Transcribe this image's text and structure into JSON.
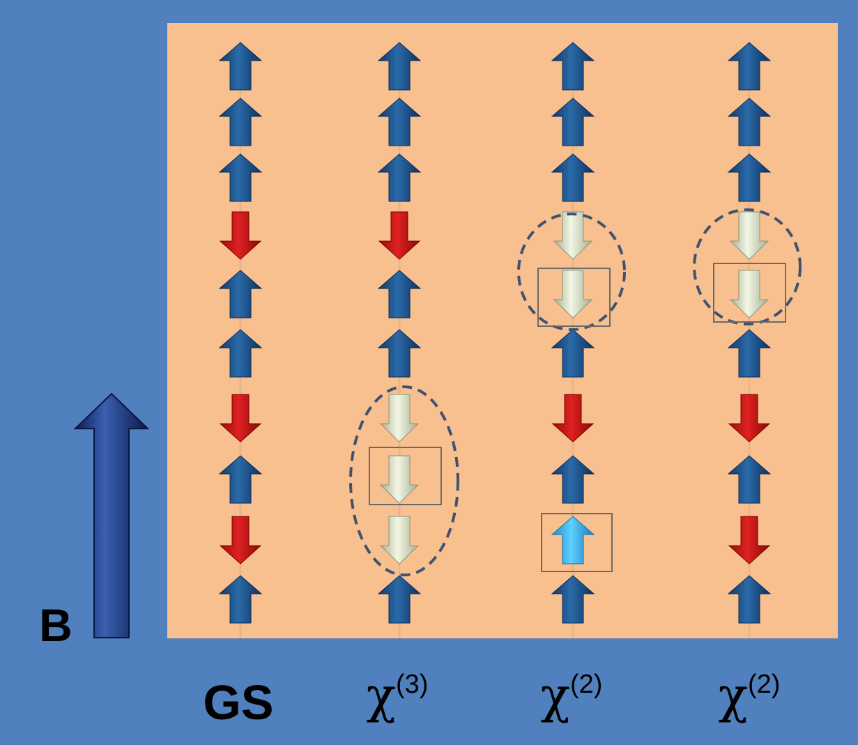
{
  "field_label": "B",
  "columns": [
    {
      "base": "GS"
    },
    {
      "base": "χ",
      "sup": "(3)"
    },
    {
      "base": "χ",
      "sup": "(2)"
    },
    {
      "base": "χ",
      "sup": "(2)"
    }
  ]
}
